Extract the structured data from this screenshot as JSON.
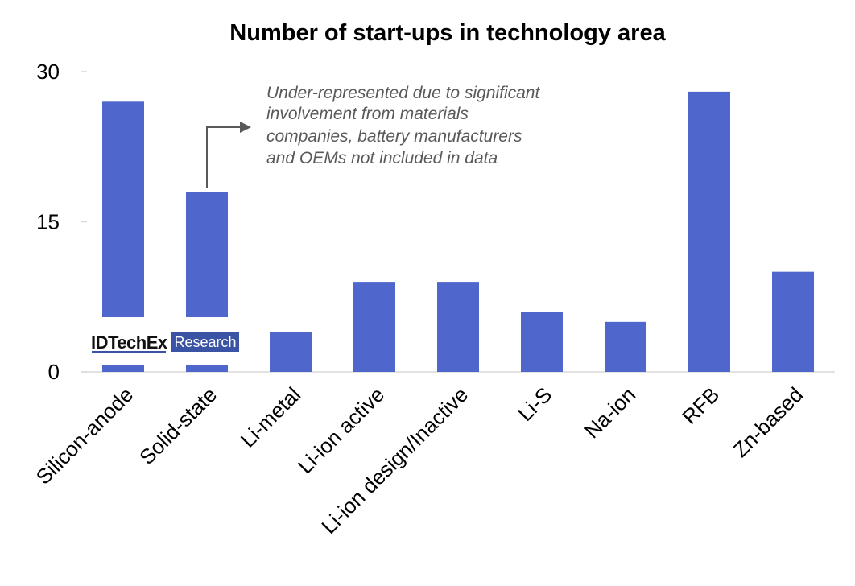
{
  "chart_data": {
    "type": "bar",
    "title": "Number of start-ups in technology area",
    "categories": [
      "Silicon-anode",
      "Solid-state",
      "Li-metal",
      "Li-ion active",
      "Li-ion design/Inactive",
      "Li-S",
      "Na-ion",
      "RFB",
      "Zn-based"
    ],
    "values": [
      27,
      18,
      4,
      9,
      9,
      6,
      5,
      28,
      10
    ],
    "ylim": [
      0,
      30
    ],
    "yticks": [
      "0",
      "15",
      "30"
    ],
    "grid": false,
    "bar_color": "#4f67cc",
    "annotation": {
      "target": "Solid-state",
      "lines": [
        "Under-represented due to significant",
        "involvement from materials",
        "companies, battery manufacturers",
        "and OEMs not included in data"
      ]
    }
  },
  "logo": {
    "brand": "IDTechEx",
    "tag": "Research",
    "tag_color": "#3a53a4"
  }
}
